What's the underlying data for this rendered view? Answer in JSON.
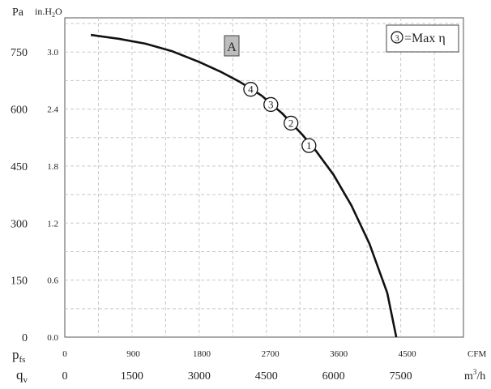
{
  "chart_data": {
    "type": "line",
    "title": "",
    "y_axes": {
      "primary": {
        "label": "Pa",
        "ticks": [
          0,
          150,
          300,
          450,
          600,
          750
        ],
        "ylim": [
          0,
          840
        ]
      },
      "secondary": {
        "label": "in.H2O",
        "label_parts": [
          "in.H",
          "2",
          "O"
        ],
        "ticks": [
          "0.0",
          "0.6",
          "1.2",
          "1.8",
          "2.4",
          "3.0"
        ]
      },
      "quantity_label": {
        "main": "p",
        "sub": "fs"
      }
    },
    "x_axes": {
      "primary": {
        "unit": "m3/h",
        "unit_parts": [
          "m",
          "3",
          "/h"
        ],
        "ticks": [
          0,
          1500,
          3000,
          4500,
          6000,
          7500
        ],
        "xlim": [
          0,
          8900
        ]
      },
      "secondary": {
        "unit": "CFM",
        "ticks": [
          0,
          900,
          1800,
          2700,
          3600,
          4500
        ]
      },
      "quantity_label": {
        "main": "q",
        "sub": "v"
      }
    },
    "grid": true,
    "series": [
      {
        "color": "#111111",
        "x": [
          580,
          1200,
          1800,
          2400,
          3000,
          3500,
          3900,
          4200,
          4400,
          4700,
          4850,
          5100,
          5300,
          5600,
          6000,
          6400,
          6800,
          7200,
          7400
        ],
        "y": [
          795,
          785,
          772,
          752,
          724,
          697,
          672,
          650,
          635,
          604,
          589,
          558,
          533,
          491,
          427,
          346,
          246,
          116,
          0
        ]
      }
    ],
    "operating_points": [
      {
        "label": "4",
        "x": 4150,
        "y": 652
      },
      {
        "label": "3",
        "x": 4600,
        "y": 612
      },
      {
        "label": "2",
        "x": 5050,
        "y": 563
      },
      {
        "label": "1",
        "x": 5450,
        "y": 504
      }
    ],
    "curve_label": "A",
    "legend": {
      "symbol": "3",
      "text": "=Max η",
      "position": "top-right"
    }
  }
}
